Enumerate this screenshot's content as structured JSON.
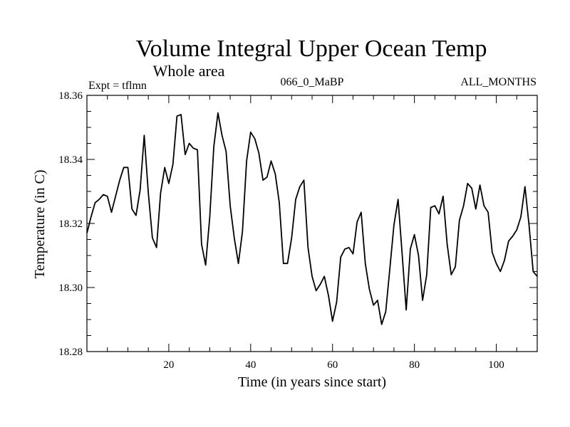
{
  "chart_data": {
    "type": "line",
    "title": "Volume Integral Upper Ocean Temp",
    "subtitle": "Whole area",
    "left_label": "Expt = tflmn",
    "center_label": "066_0_MaBP",
    "right_label": "ALL_MONTHS",
    "xlabel": "Time (in years since start)",
    "ylabel": "Temperature (in C)",
    "xlim": [
      0,
      110
    ],
    "ylim": [
      18.28,
      18.36
    ],
    "xticks_major": [
      20,
      40,
      60,
      80,
      100
    ],
    "xtick_labels": [
      "20",
      "40",
      "60",
      "80",
      "100"
    ],
    "xticks_minor_step": 5,
    "yticks_major": [
      18.28,
      18.3,
      18.32,
      18.34,
      18.36
    ],
    "ytick_labels": [
      "18.28",
      "18.30",
      "18.32",
      "18.34",
      "18.36"
    ],
    "yticks_minor_step": 0.005,
    "grid": false,
    "series": [
      {
        "name": "tflmn",
        "color": "#000000",
        "x": [
          0,
          1,
          2,
          3,
          4,
          5,
          6,
          7,
          8,
          9,
          10,
          11,
          12,
          13,
          14,
          15,
          16,
          17,
          18,
          19,
          20,
          21,
          22,
          23,
          24,
          25,
          26,
          27,
          28,
          29,
          30,
          31,
          32,
          33,
          34,
          35,
          36,
          37,
          38,
          39,
          40,
          41,
          42,
          43,
          44,
          45,
          46,
          47,
          48,
          49,
          50,
          51,
          52,
          53,
          54,
          55,
          56,
          57,
          58,
          59,
          60,
          61,
          62,
          63,
          64,
          65,
          66,
          67,
          68,
          69,
          70,
          71,
          72,
          73,
          74,
          75,
          76,
          77,
          78,
          79,
          80,
          81,
          82,
          83,
          84,
          85,
          86,
          87,
          88,
          89,
          90,
          91,
          92,
          93,
          94,
          95,
          96,
          97,
          98,
          99,
          100,
          101,
          102,
          103,
          104,
          105,
          106,
          107,
          108,
          109,
          110
        ],
        "values": [
          18.317,
          18.322,
          18.3265,
          18.3275,
          18.329,
          18.3285,
          18.3235,
          18.3285,
          18.3335,
          18.3375,
          18.3375,
          18.3245,
          18.3225,
          18.3305,
          18.3475,
          18.3295,
          18.3155,
          18.3125,
          18.3295,
          18.3375,
          18.3325,
          18.3385,
          18.3535,
          18.354,
          18.3415,
          18.345,
          18.3435,
          18.343,
          18.3135,
          18.307,
          18.322,
          18.344,
          18.3545,
          18.3475,
          18.3425,
          18.3255,
          18.3155,
          18.3075,
          18.3175,
          18.3395,
          18.3485,
          18.3465,
          18.342,
          18.3335,
          18.3345,
          18.3395,
          18.3355,
          18.3265,
          18.3075,
          18.3075,
          18.3155,
          18.3275,
          18.3315,
          18.3335,
          18.3125,
          18.3035,
          18.299,
          18.301,
          18.3035,
          18.2975,
          18.2895,
          18.2955,
          18.3095,
          18.312,
          18.3125,
          18.3105,
          18.3205,
          18.3235,
          18.3075,
          18.2995,
          18.2945,
          18.296,
          18.2885,
          18.2925,
          18.306,
          18.3195,
          18.3275,
          18.3105,
          18.293,
          18.312,
          18.3165,
          18.31,
          18.296,
          18.304,
          18.325,
          18.3255,
          18.323,
          18.3285,
          18.3135,
          18.304,
          18.3065,
          18.321,
          18.3255,
          18.3325,
          18.331,
          18.3245,
          18.332,
          18.3255,
          18.3235,
          18.311,
          18.3075,
          18.305,
          18.3085,
          18.3145,
          18.316,
          18.318,
          18.322,
          18.3315,
          18.3195,
          18.305,
          18.3035
        ]
      }
    ]
  }
}
